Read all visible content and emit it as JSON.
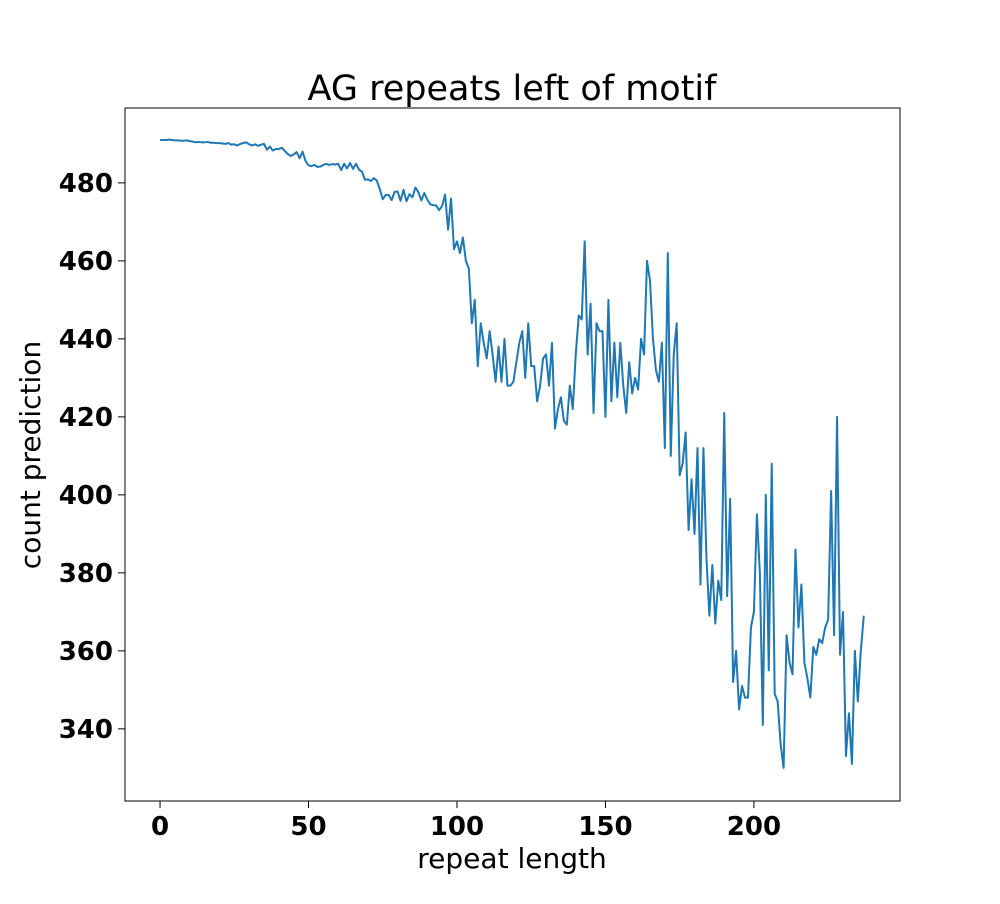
{
  "chart_data": {
    "type": "line",
    "title": "AG repeats left of motif",
    "x_label": "repeat length",
    "y_label": "count prediction",
    "xlim": [
      -11.8,
      249.2
    ],
    "ylim": [
      321.5,
      499.2
    ],
    "xticks": [
      0,
      50,
      100,
      150,
      200
    ],
    "yticks": [
      340,
      360,
      380,
      400,
      420,
      440,
      460,
      480
    ],
    "x": [
      0,
      1,
      2,
      3,
      4,
      5,
      6,
      7,
      8,
      9,
      10,
      11,
      12,
      13,
      14,
      15,
      16,
      17,
      18,
      19,
      20,
      21,
      22,
      23,
      24,
      25,
      26,
      27,
      28,
      29,
      30,
      31,
      32,
      33,
      34,
      35,
      36,
      37,
      38,
      39,
      40,
      41,
      42,
      43,
      44,
      45,
      46,
      47,
      48,
      49,
      50,
      51,
      52,
      53,
      54,
      55,
      56,
      57,
      58,
      59,
      60,
      61,
      62,
      63,
      64,
      65,
      66,
      67,
      68,
      69,
      70,
      71,
      72,
      73,
      74,
      75,
      76,
      77,
      78,
      79,
      80,
      81,
      82,
      83,
      84,
      85,
      86,
      87,
      88,
      89,
      90,
      91,
      92,
      93,
      94,
      95,
      96,
      97,
      98,
      99,
      100,
      101,
      102,
      103,
      104,
      105,
      106,
      107,
      108,
      109,
      110,
      111,
      112,
      113,
      114,
      115,
      116,
      117,
      118,
      119,
      120,
      121,
      122,
      123,
      124,
      125,
      126,
      127,
      128,
      129,
      130,
      131,
      132,
      133,
      134,
      135,
      136,
      137,
      138,
      139,
      140,
      141,
      142,
      143,
      144,
      145,
      146,
      147,
      148,
      149,
      150,
      151,
      152,
      153,
      154,
      155,
      156,
      157,
      158,
      159,
      160,
      161,
      162,
      163,
      164,
      165,
      166,
      167,
      168,
      169,
      170,
      171,
      172,
      173,
      174,
      175,
      176,
      177,
      178,
      179,
      180,
      181,
      182,
      183,
      184,
      185,
      186,
      187,
      188,
      189,
      190,
      191,
      192,
      193,
      194,
      195,
      196,
      197,
      198,
      199,
      200,
      201,
      202,
      203,
      204,
      205,
      206,
      207,
      208,
      209,
      210,
      211,
      212,
      213,
      214,
      215,
      216,
      217,
      218,
      219,
      220,
      221,
      222,
      223,
      224,
      225,
      226,
      227,
      228,
      229,
      230,
      231,
      232,
      233,
      234,
      235,
      236,
      237
    ],
    "series": [
      {
        "name": "count prediction",
        "color": "#1f77b4",
        "values": [
          491,
          491,
          491,
          491.1,
          491,
          490.9,
          490.9,
          490.8,
          490.8,
          490.9,
          490.7,
          490.6,
          490.4,
          490.5,
          490.4,
          490.4,
          490.5,
          490.3,
          490.3,
          490.2,
          490.2,
          490.1,
          490,
          490.2,
          489.8,
          489.9,
          489.6,
          490,
          490.2,
          490.4,
          489.9,
          489.6,
          489.9,
          489.5,
          489.8,
          490,
          488.5,
          489.3,
          488.3,
          488.7,
          488.7,
          489,
          488.2,
          487.4,
          486.9,
          487.3,
          487.9,
          486.3,
          488,
          485.6,
          484.5,
          484.3,
          484.6,
          484.1,
          484.2,
          484.6,
          484.9,
          484.6,
          484.8,
          484.7,
          484.9,
          483.3,
          484.9,
          483.7,
          485.1,
          483.6,
          484.9,
          483.4,
          482.9,
          480.8,
          480.9,
          480.5,
          481.2,
          480.6,
          478.4,
          475.8,
          476.9,
          476.9,
          475.6,
          477.7,
          477.8,
          475.4,
          478.2,
          475.3,
          477.1,
          476.3,
          478.8,
          477.6,
          475.5,
          477.4,
          475.7,
          474.5,
          474.3,
          474.2,
          473,
          474.1,
          477,
          468,
          476,
          463,
          465,
          462,
          466,
          460,
          458,
          444,
          450,
          433,
          444,
          439,
          435,
          442,
          436,
          429,
          438,
          429,
          440,
          428,
          428,
          429,
          434,
          439,
          442,
          430,
          444,
          433,
          433,
          424,
          428,
          435,
          436,
          428,
          439,
          417,
          422,
          425,
          419,
          418,
          428,
          422,
          436,
          446,
          445,
          465,
          436,
          449,
          421,
          444,
          442,
          442,
          420,
          450,
          424,
          439,
          425,
          439,
          428,
          421,
          434,
          426,
          430,
          427,
          440,
          436,
          460,
          455,
          440,
          432,
          429,
          439,
          412,
          462,
          410,
          436,
          444,
          405,
          408,
          416,
          391,
          404,
          390,
          412,
          377,
          412,
          384,
          369,
          382,
          367,
          378,
          373,
          421,
          374,
          399,
          352,
          360,
          345,
          351,
          348,
          348,
          366,
          370,
          395,
          380,
          341,
          400,
          355,
          408,
          349,
          347,
          336,
          330,
          364,
          357,
          354,
          386,
          366,
          377,
          357,
          353,
          348,
          361,
          359,
          363,
          362,
          366,
          368,
          401,
          364,
          420,
          359,
          370,
          333,
          344,
          331,
          360,
          347,
          360,
          369
        ]
      }
    ]
  }
}
